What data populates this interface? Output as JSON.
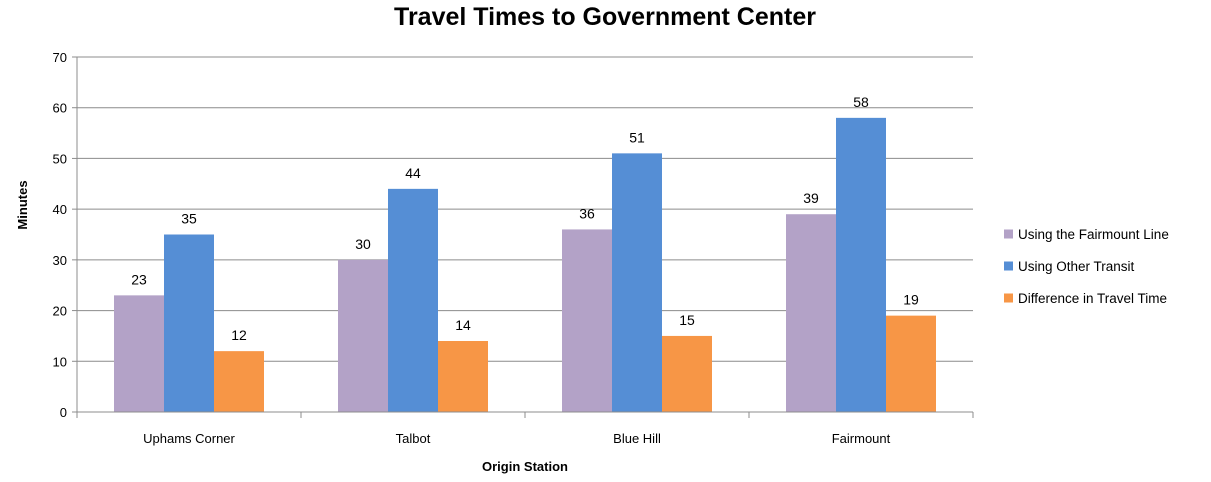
{
  "chart_data": {
    "type": "bar",
    "title": "Travel Times to Government Center",
    "xlabel": "Origin Station",
    "ylabel": "Minutes",
    "categories": [
      "Uphams Corner",
      "Talbot",
      "Blue Hill",
      "Fairmount"
    ],
    "series": [
      {
        "name": "Using the Fairmount Line",
        "values": [
          23,
          30,
          36,
          39
        ],
        "color": "#b3a2c7"
      },
      {
        "name": "Using Other Transit",
        "values": [
          35,
          44,
          51,
          58
        ],
        "color": "#558ed5"
      },
      {
        "name": "Difference in Travel Time",
        "values": [
          12,
          14,
          15,
          19
        ],
        "color": "#f79646"
      }
    ],
    "ylim": [
      0,
      70
    ],
    "yticks": [
      0,
      10,
      20,
      30,
      40,
      50,
      60,
      70
    ],
    "grid": true,
    "legend_position": "right",
    "data_labels": true,
    "gridline_color": "#8c8c8c"
  }
}
